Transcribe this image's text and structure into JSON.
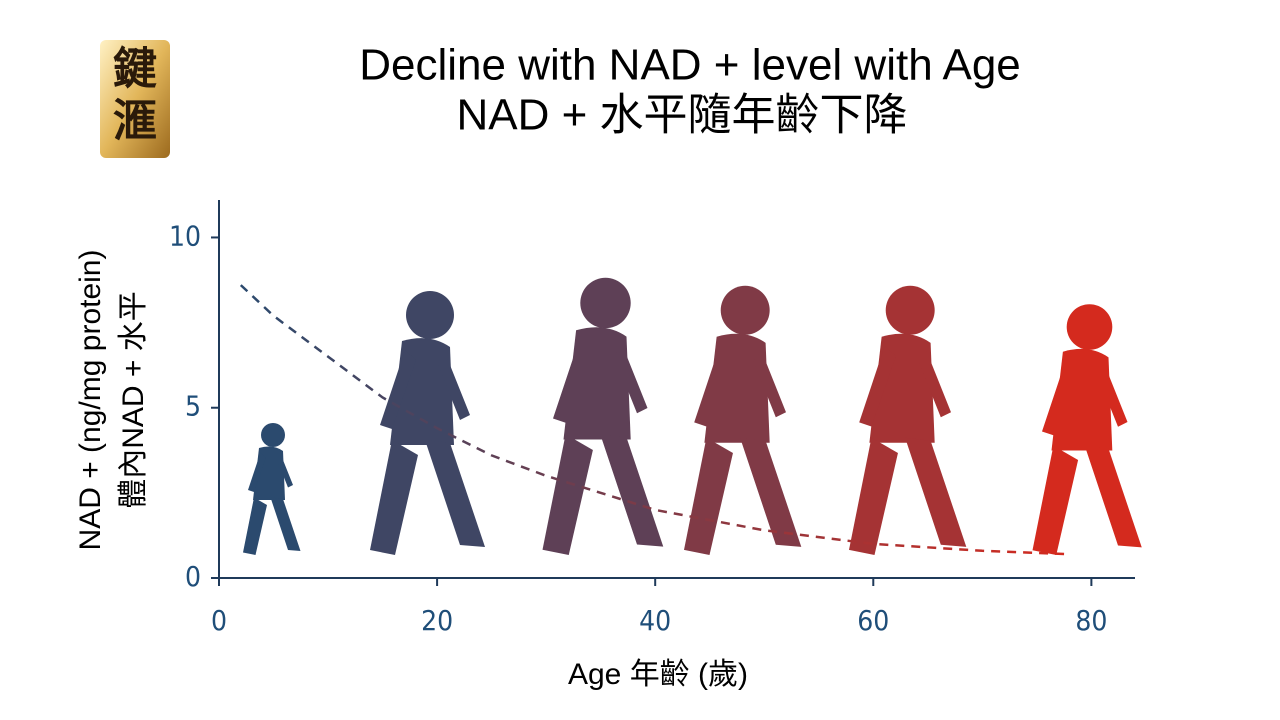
{
  "logo": [
    "鍵",
    "滙"
  ],
  "chart_data": {
    "type": "line",
    "title": "Decline with NAD + level with Age",
    "subtitle": "NAD + 水平隨年齡下降",
    "ylabel": [
      "NAD + (ng/mg protein)",
      "體內NAD + 水平"
    ],
    "xlabel": "Age 年齡 (歲)",
    "x": [
      2,
      5,
      10,
      15,
      20,
      25,
      30,
      40,
      50,
      60,
      70,
      78
    ],
    "values": [
      8.6,
      7.7,
      6.5,
      5.3,
      4.4,
      3.6,
      3.0,
      2.0,
      1.4,
      1.0,
      0.8,
      0.7
    ],
    "colors": [
      "#2b4a6e",
      "#d42a1e"
    ],
    "dashed": true,
    "xlim": [
      0,
      84
    ],
    "ylim": [
      0,
      11.1
    ],
    "xticks": [
      0,
      20,
      40,
      60,
      80
    ],
    "yticks": [
      0,
      5,
      10
    ]
  }
}
